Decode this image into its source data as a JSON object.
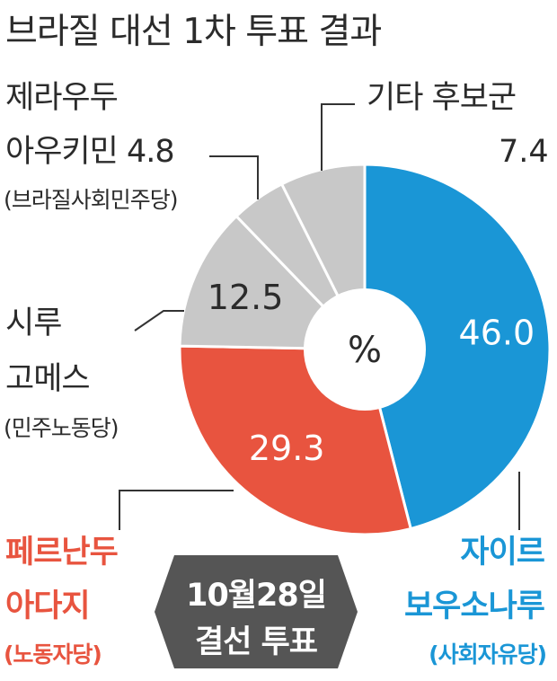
{
  "title": "브라질 대선 1차 투표 결과",
  "chart_data": {
    "type": "pie",
    "unit": "%",
    "slices": [
      {
        "name_line1": "자이르",
        "name_line2": "보우소나루",
        "party": "(사회자유당)",
        "value": 46.0,
        "label": "46.0",
        "color": "#1a96d6"
      },
      {
        "name_line1": "페르난두",
        "name_line2": "아다지",
        "party": "(노동자당)",
        "value": 29.3,
        "label": "29.3",
        "color": "#e8543f"
      },
      {
        "name_line1": "시루",
        "name_line2": "고메스",
        "party": "(민주노동당)",
        "value": 12.5,
        "label": "12.5",
        "color": "#c8c8c8"
      },
      {
        "name_line1": "제라우두",
        "name_line2": "아우키민",
        "party": "(브라질사회민주당)",
        "value": 4.8,
        "label": "4.8",
        "color": "#c8c8c8"
      },
      {
        "name_line1": "기타 후보군",
        "name_line2": "",
        "party": "",
        "value": 7.4,
        "label": "7.4",
        "color": "#c8c8c8"
      }
    ]
  },
  "badge": {
    "line1": "10월28일",
    "line2": "결선 투표",
    "color": "#555555"
  },
  "colors": {
    "leader_line": "#333333",
    "separator": "#ffffff"
  }
}
